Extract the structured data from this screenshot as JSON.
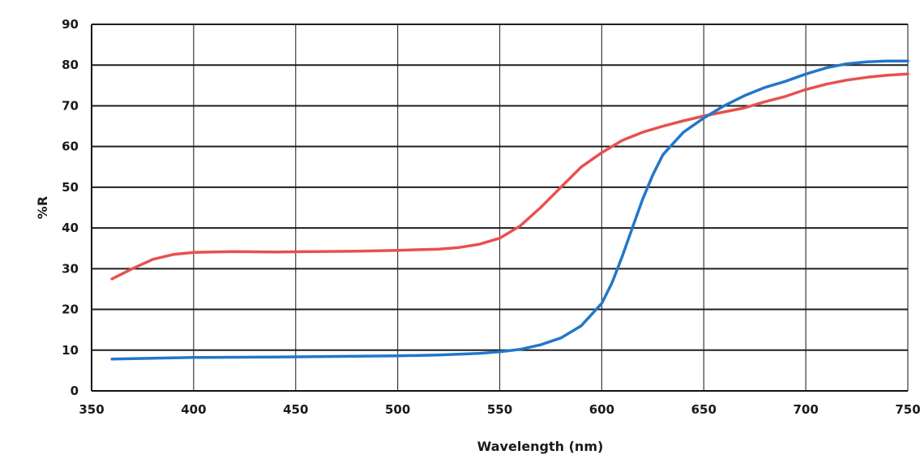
{
  "chart_data": {
    "type": "line",
    "title": "",
    "xlabel": "Wavelength (nm)",
    "ylabel": "%R",
    "xlim": [
      350,
      750
    ],
    "ylim": [
      0,
      90
    ],
    "x_ticks": [
      350,
      400,
      450,
      500,
      550,
      600,
      650,
      700,
      750
    ],
    "y_ticks": [
      0,
      10,
      20,
      30,
      40,
      50,
      60,
      70,
      80,
      90
    ],
    "grid": true,
    "legend": "none",
    "series": [
      {
        "color": "#e8504f",
        "x": [
          360,
          370,
          380,
          390,
          400,
          420,
          440,
          460,
          480,
          500,
          520,
          530,
          540,
          550,
          560,
          570,
          580,
          590,
          600,
          610,
          620,
          630,
          640,
          650,
          660,
          670,
          680,
          690,
          700,
          710,
          720,
          730,
          740,
          750
        ],
        "y": [
          27.5,
          30,
          32.3,
          33.5,
          34,
          34.2,
          34.1,
          34.2,
          34.3,
          34.5,
          34.8,
          35.2,
          36,
          37.5,
          40.5,
          45,
          50,
          55,
          58.5,
          61.5,
          63.5,
          65,
          66.3,
          67.5,
          68.5,
          69.5,
          71,
          72.3,
          74,
          75.3,
          76.3,
          77,
          77.5,
          77.8
        ]
      },
      {
        "color": "#2277c9",
        "x": [
          360,
          380,
          400,
          440,
          480,
          500,
          520,
          540,
          550,
          560,
          570,
          580,
          590,
          600,
          605,
          610,
          615,
          620,
          625,
          630,
          640,
          650,
          660,
          670,
          680,
          690,
          700,
          710,
          720,
          730,
          740,
          750
        ],
        "y": [
          7.8,
          8,
          8.2,
          8.3,
          8.5,
          8.6,
          8.8,
          9.2,
          9.6,
          10.2,
          11.3,
          13,
          16,
          21.5,
          26.5,
          33,
          40,
          47,
          53,
          58,
          63.5,
          67,
          70,
          72.5,
          74.5,
          76,
          77.8,
          79.3,
          80.3,
          80.8,
          81,
          81
        ]
      }
    ]
  }
}
